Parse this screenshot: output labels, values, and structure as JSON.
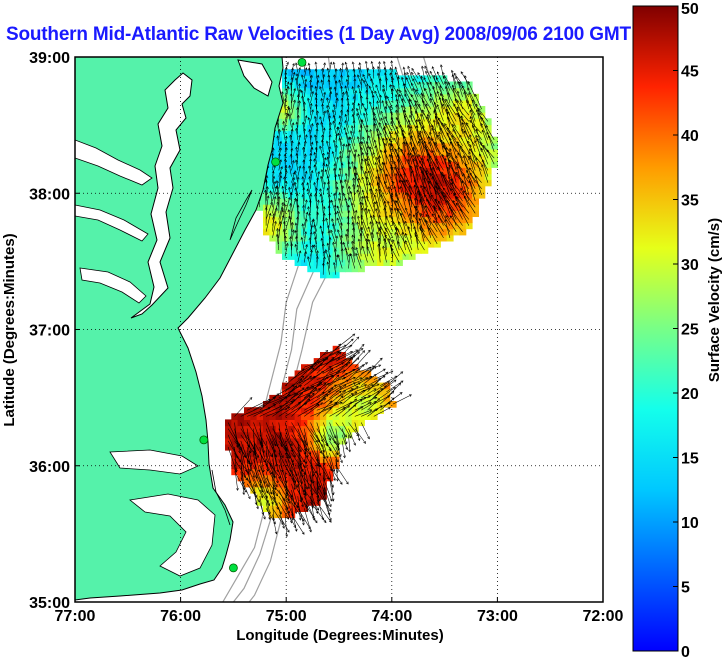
{
  "title": "Southern Mid-Atlantic Raw Velocities (1 Day Avg) 2008/09/06 2100 GMT",
  "chart_data": {
    "type": "heatmap",
    "title": "Southern Mid-Atlantic Raw Velocities (1 Day Avg) 2008/09/06 2100 GMT",
    "xlabel": "Longitude (Degrees:Minutes)",
    "ylabel": "Latitude (Degrees:Minutes)",
    "xlim": [
      -77,
      -72
    ],
    "ylim": [
      35,
      39
    ],
    "x_ticks": [
      {
        "value": -77,
        "label": "77:00"
      },
      {
        "value": -76,
        "label": "76:00"
      },
      {
        "value": -75,
        "label": "75:00"
      },
      {
        "value": -74,
        "label": "74:00"
      },
      {
        "value": -73,
        "label": "73:00"
      },
      {
        "value": -72,
        "label": "72:00"
      }
    ],
    "y_ticks": [
      {
        "value": 35,
        "label": "35:00"
      },
      {
        "value": 36,
        "label": "36:00"
      },
      {
        "value": 37,
        "label": "37:00"
      },
      {
        "value": 38,
        "label": "38:00"
      },
      {
        "value": 39,
        "label": "39:00"
      }
    ],
    "grid": true,
    "colorbar": {
      "label": "Surface Velocity (cm/s)",
      "range": [
        0,
        50
      ],
      "ticks": [
        0,
        5,
        10,
        15,
        20,
        25,
        30,
        35,
        40,
        45,
        50
      ],
      "colormap": "jet"
    },
    "regions": [
      {
        "name": "northern",
        "polygon": [
          [
            -75.03,
            38.9
          ],
          [
            -74.35,
            38.9
          ],
          [
            -73.75,
            38.88
          ],
          [
            -73.28,
            38.82
          ],
          [
            -73.1,
            38.55
          ],
          [
            -72.98,
            38.3
          ],
          [
            -73.05,
            38.15
          ],
          [
            -73.25,
            37.75
          ],
          [
            -73.55,
            37.62
          ],
          [
            -73.85,
            37.5
          ],
          [
            -74.25,
            37.45
          ],
          [
            -74.65,
            37.38
          ],
          [
            -75.05,
            37.55
          ],
          [
            -75.2,
            37.7
          ],
          [
            -75.28,
            38.0
          ],
          [
            -75.22,
            38.3
          ],
          [
            -75.08,
            38.6
          ]
        ],
        "hotspots": [
          {
            "lon": -73.65,
            "lat": 38.05,
            "r": 0.42,
            "v": 48
          },
          {
            "lon": -73.35,
            "lat": 38.55,
            "r": 0.18,
            "v": 33
          },
          {
            "lon": -75.18,
            "lat": 37.75,
            "r": 0.2,
            "v": 32
          },
          {
            "lon": -74.1,
            "lat": 37.55,
            "r": 0.25,
            "v": 30
          },
          {
            "lon": -75.05,
            "lat": 38.62,
            "r": 0.12,
            "v": 30
          }
        ],
        "base_velocity": 12
      },
      {
        "name": "southern",
        "polygon": [
          [
            -74.5,
            36.88
          ],
          [
            -74.3,
            36.72
          ],
          [
            -74.02,
            36.58
          ],
          [
            -73.98,
            36.45
          ],
          [
            -74.3,
            36.3
          ],
          [
            -74.45,
            36.2
          ],
          [
            -74.55,
            35.95
          ],
          [
            -74.65,
            35.75
          ],
          [
            -74.85,
            35.65
          ],
          [
            -75.15,
            35.62
          ],
          [
            -75.3,
            35.78
          ],
          [
            -75.5,
            35.95
          ],
          [
            -75.58,
            36.2
          ],
          [
            -75.55,
            36.35
          ],
          [
            -75.25,
            36.45
          ],
          [
            -75.05,
            36.55
          ],
          [
            -74.88,
            36.72
          ]
        ],
        "hotspots": [
          {
            "lon": -74.25,
            "lat": 36.42,
            "r": 0.22,
            "v": 30
          },
          {
            "lon": -75.25,
            "lat": 35.72,
            "r": 0.15,
            "v": 30
          },
          {
            "lon": -74.55,
            "lat": 36.22,
            "r": 0.12,
            "v": 26
          }
        ],
        "base_velocity": 47
      }
    ],
    "stations": [
      {
        "lon": -74.85,
        "lat": 38.96
      },
      {
        "lon": -75.1,
        "lat": 38.23
      },
      {
        "lon": -75.78,
        "lat": 36.19
      },
      {
        "lon": -75.5,
        "lat": 35.25
      }
    ]
  },
  "colors": {
    "land": "#55f2aa",
    "title": "#1a1aff",
    "station": "#00e040",
    "bathymetry": "#a0a0a0"
  }
}
